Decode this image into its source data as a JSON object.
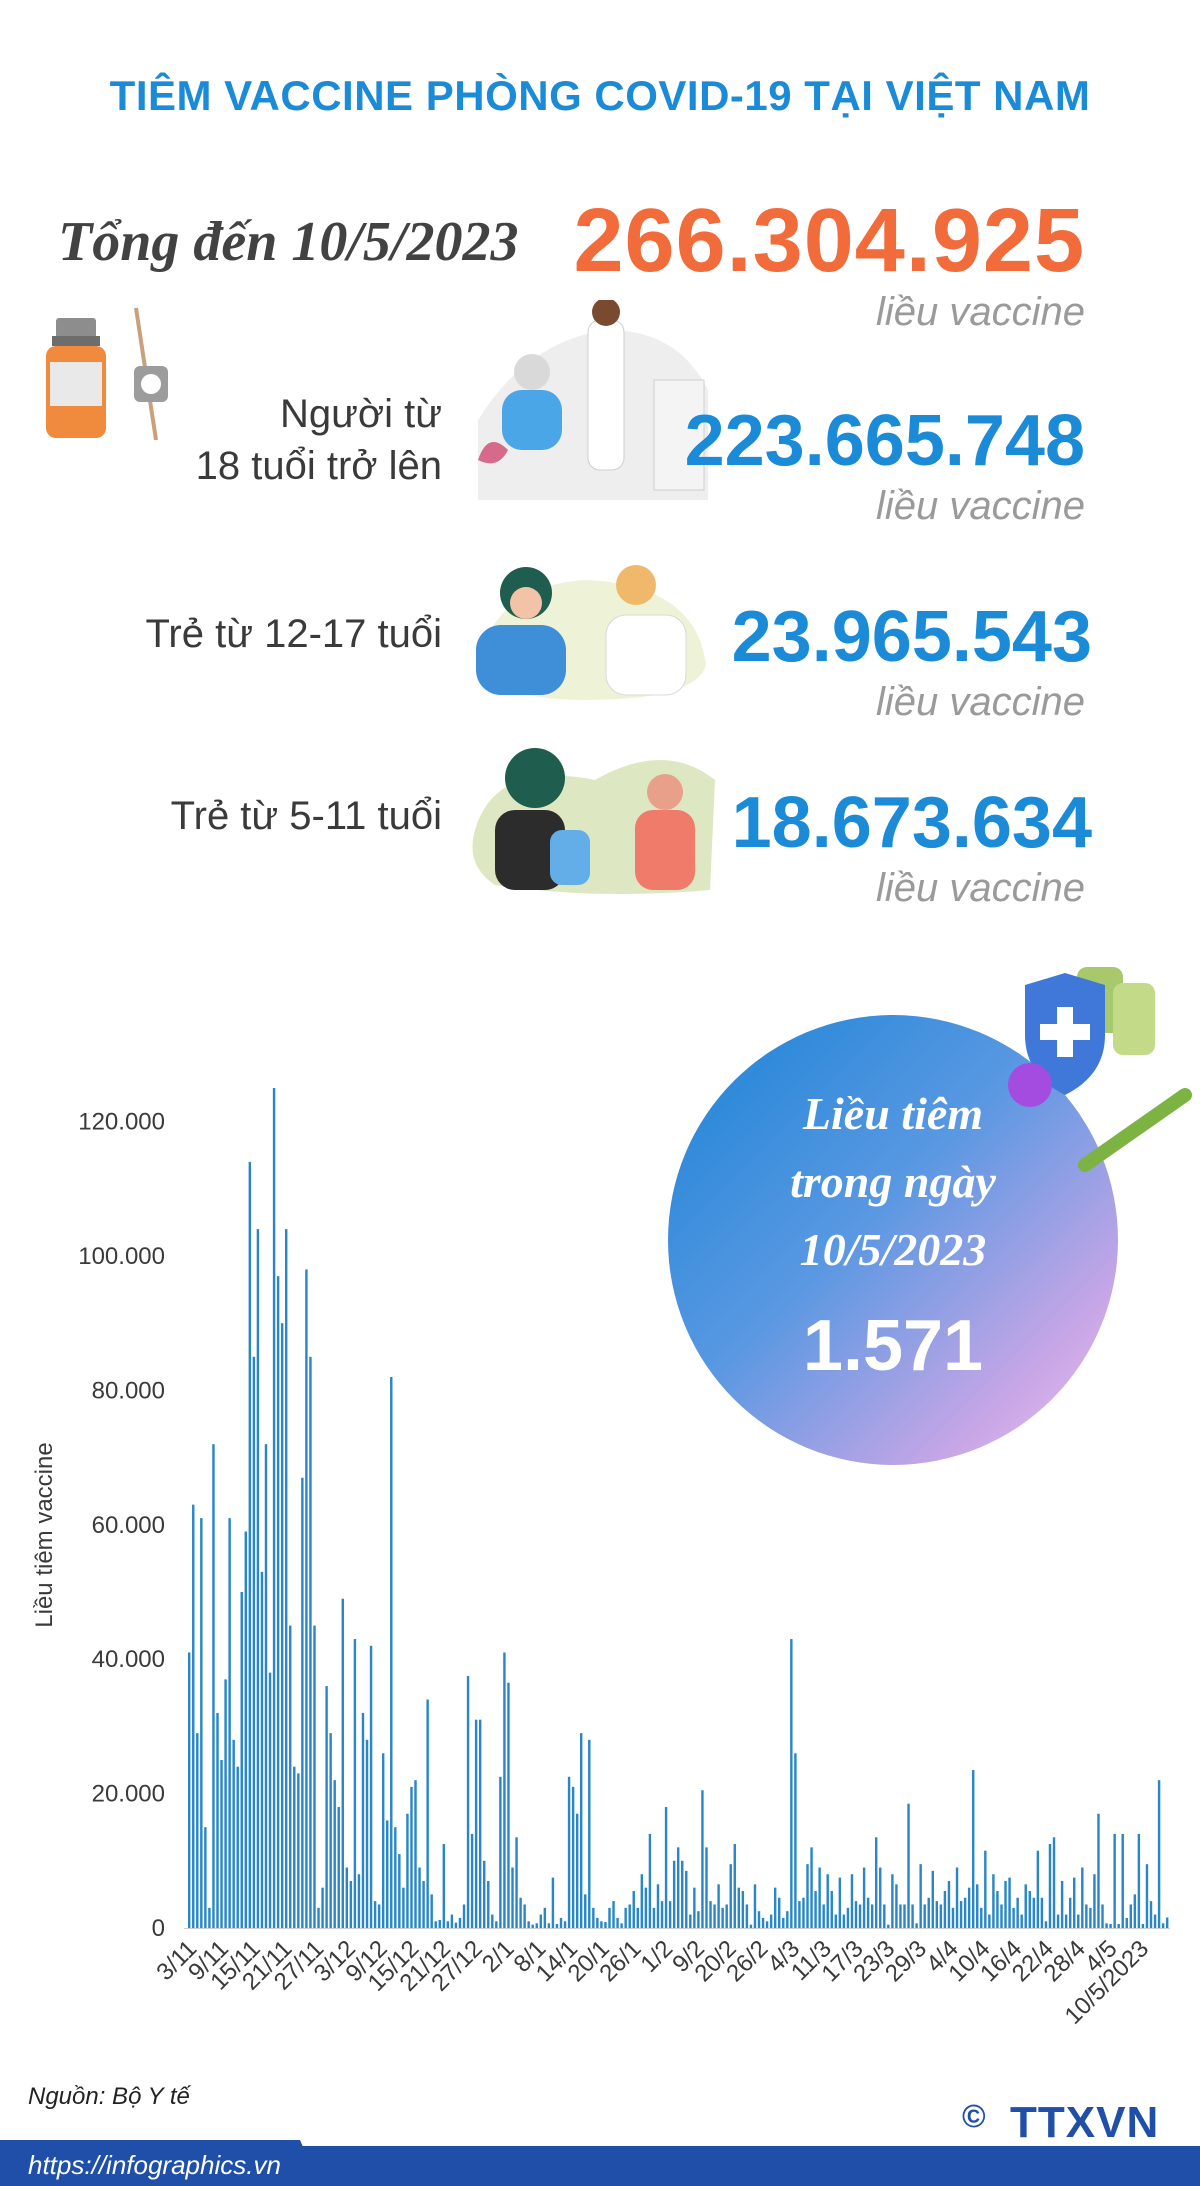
{
  "title": "TIÊM VACCINE PHÒNG COVID-19 TẠI VIỆT NAM",
  "total": {
    "label": "Tổng đến 10/5/2023",
    "value": "266.304.925",
    "unit": "liều vaccine"
  },
  "groups": [
    {
      "label_lines": [
        "Người từ",
        "18 tuổi trở lên"
      ],
      "value": "223.665.748",
      "unit": "liều vaccine"
    },
    {
      "label_lines": [
        "Trẻ từ 12-17 tuổi"
      ],
      "value": "23.965.543",
      "unit": "liều vaccine"
    },
    {
      "label_lines": [
        "Trẻ từ 5-11 tuổi"
      ],
      "value": "18.673.634",
      "unit": "liều vaccine"
    }
  ],
  "daily": {
    "label": "Liều tiêm\ntrong ngày\n10/5/2023",
    "value": "1.571"
  },
  "source": "Nguồn: Bộ Y tế",
  "url": "https://infographics.vn",
  "logo": "TTXVN",
  "colors": {
    "title": "#1b8bd7",
    "bar": "#2a86c8",
    "total": "#f26b3a"
  },
  "chart_data": {
    "type": "bar",
    "ylabel": "Liều tiêm vaccine",
    "ylim": [
      0,
      125000
    ],
    "yticks": [
      0,
      20000,
      40000,
      60000,
      80000,
      100000,
      120000
    ],
    "ytick_labels": [
      "0",
      "20.000",
      "40.000",
      "60.000",
      "80.000",
      "100.000",
      "120.000"
    ],
    "xtick_labels": [
      "3/11",
      "9/11",
      "15/11",
      "21/11",
      "27/11",
      "3/12",
      "9/12",
      "15/12",
      "21/12",
      "27/12",
      "2/1",
      "8/1",
      "14/1",
      "20/1",
      "26/1",
      "1/2",
      "9/2",
      "20/2",
      "26/2",
      "4/3",
      "11/3",
      "17/3",
      "23/3",
      "29/3",
      "4/4",
      "10/4",
      "16/4",
      "22/4",
      "28/4",
      "4/5",
      "10/5/2023"
    ],
    "values": [
      41000,
      63000,
      29000,
      61000,
      15000,
      3000,
      72000,
      32000,
      25000,
      37000,
      61000,
      28000,
      24000,
      50000,
      59000,
      114000,
      85000,
      104000,
      53000,
      72000,
      38000,
      125000,
      97000,
      90000,
      104000,
      45000,
      24000,
      23000,
      67000,
      98000,
      85000,
      45000,
      3000,
      6000,
      36000,
      29000,
      22000,
      18000,
      49000,
      9000,
      7000,
      43000,
      8000,
      32000,
      28000,
      42000,
      4000,
      3500,
      26000,
      16000,
      82000,
      15000,
      11000,
      6000,
      17000,
      21000,
      22000,
      9000,
      7000,
      34000,
      5000,
      1000,
      1200,
      12500,
      1000,
      2000,
      800,
      1500,
      3500,
      37500,
      14000,
      31000,
      31000,
      10000,
      7000,
      2000,
      1000,
      22500,
      41000,
      36500,
      9000,
      13500,
      4500,
      3500,
      1000,
      500,
      700,
      2000,
      3000,
      700,
      7500,
      600,
      1500,
      1000,
      22500,
      21000,
      17000,
      29000,
      5000,
      28000,
      3000,
      1500,
      1000,
      900,
      3000,
      4000,
      1500,
      700,
      3000,
      3500,
      5500,
      3000,
      8000,
      6000,
      14000,
      3000,
      6500,
      4000,
      18000,
      4000,
      10000,
      12000,
      10000,
      8500,
      2000,
      6000,
      2500,
      20500,
      12000,
      4000,
      3500,
      6500,
      3000,
      3500,
      9500,
      12500,
      6000,
      5500,
      3500,
      500,
      6500,
      2500,
      1500,
      1000,
      2000,
      6000,
      4500,
      1500,
      2500,
      43000,
      26000,
      4000,
      4500,
      9500,
      12000,
      5500,
      9000,
      3500,
      8000,
      5500,
      2000,
      7500,
      2000,
      3000,
      8000,
      4000,
      3500,
      9000,
      4500,
      3500,
      13500,
      9000,
      3500,
      500,
      8000,
      6500,
      3500,
      3500,
      18500,
      3500,
      700,
      9500,
      3500,
      4500,
      8500,
      4000,
      3500,
      5500,
      7000,
      3000,
      9000,
      4000,
      4500,
      6000,
      23500,
      6500,
      3000,
      11500,
      2000,
      8000,
      5500,
      3500,
      7000,
      7500,
      3000,
      4500,
      2000,
      6500,
      5500,
      4500,
      11500,
      4500,
      1000,
      12500,
      13500,
      2000,
      7000,
      2000,
      4500,
      7500,
      2000,
      9000,
      3500,
      3000,
      8000,
      17000,
      3500,
      700,
      600,
      14000,
      600,
      14000,
      1500,
      3500,
      5000,
      14000,
      600,
      9500,
      4000,
      2000,
      22000,
      700,
      1571
    ],
    "series_color": "#2a86c8"
  }
}
